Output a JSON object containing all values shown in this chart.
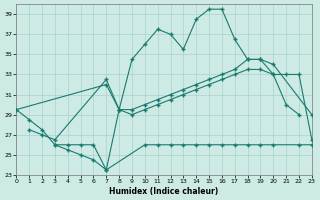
{
  "xlabel": "Humidex (Indice chaleur)",
  "background_color": "#cdeae5",
  "grid_color": "#b0d5d0",
  "line_color": "#1a7a6e",
  "xlim": [
    0,
    23
  ],
  "ylim": [
    23,
    40
  ],
  "yticks": [
    23,
    25,
    27,
    29,
    31,
    33,
    35,
    37,
    39
  ],
  "xticks": [
    0,
    1,
    2,
    3,
    4,
    5,
    6,
    7,
    8,
    9,
    10,
    11,
    12,
    13,
    14,
    15,
    16,
    17,
    18,
    19,
    20,
    21,
    22,
    23
  ],
  "line1_x": [
    0,
    1,
    2,
    3,
    4,
    5,
    6,
    7,
    8,
    9,
    10,
    11,
    12,
    13,
    14,
    15,
    16,
    17,
    18,
    19,
    20,
    21,
    22
  ],
  "line1_y": [
    29.5,
    28.5,
    27.5,
    26.0,
    25.5,
    25.0,
    24.5,
    23.5,
    29.5,
    34.5,
    36.0,
    37.5,
    37.0,
    35.5,
    38.5,
    39.5,
    39.5,
    36.5,
    34.5,
    34.5,
    33.0,
    30.0,
    29.0
  ],
  "line2_x": [
    1,
    2,
    3,
    7,
    8,
    9,
    10,
    11,
    12,
    13,
    14,
    15,
    16,
    17,
    18,
    19,
    20,
    23
  ],
  "line2_y": [
    27.5,
    27.0,
    26.5,
    32.5,
    29.5,
    29.5,
    30.0,
    30.5,
    31.0,
    31.5,
    32.0,
    32.5,
    33.0,
    33.5,
    34.5,
    34.5,
    34.0,
    29.0
  ],
  "line3_x": [
    0,
    7,
    8,
    9,
    10,
    11,
    12,
    13,
    14,
    15,
    16,
    17,
    18,
    19,
    20,
    21,
    22,
    23
  ],
  "line3_y": [
    29.5,
    32.0,
    29.5,
    29.0,
    29.5,
    30.0,
    30.5,
    31.0,
    31.5,
    32.0,
    32.5,
    33.0,
    33.5,
    33.5,
    33.0,
    33.0,
    33.0,
    26.5
  ],
  "line4_x": [
    3,
    4,
    5,
    6,
    7,
    10,
    11,
    12,
    13,
    14,
    15,
    16,
    17,
    18,
    19,
    20,
    22,
    23
  ],
  "line4_y": [
    26.0,
    26.0,
    26.0,
    26.0,
    23.5,
    26.0,
    26.0,
    26.0,
    26.0,
    26.0,
    26.0,
    26.0,
    26.0,
    26.0,
    26.0,
    26.0,
    26.0,
    26.0
  ]
}
